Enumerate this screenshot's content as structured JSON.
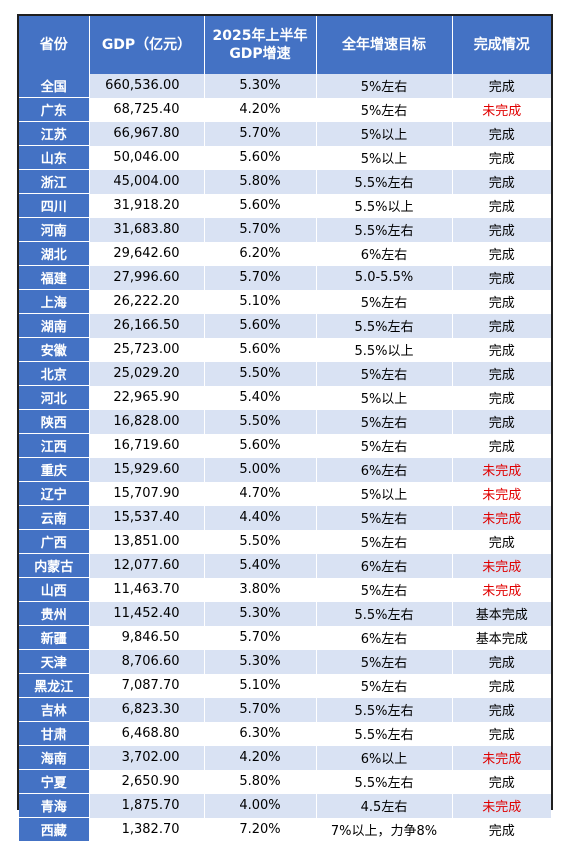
{
  "table": {
    "headers": {
      "province": "省份",
      "gdp": "GDP（亿元）",
      "growth_line1": "2025年上半年",
      "growth_line2": "GDP增速",
      "target": "全年增速目标",
      "status": "完成情况"
    },
    "status_colors": {
      "default": "#000000",
      "incomplete": "#e00000"
    },
    "rows": [
      {
        "province": "全国",
        "gdp": "660,536.00",
        "growth": "5.30%",
        "target": "5%左右",
        "status": "完成"
      },
      {
        "province": "广东",
        "gdp": "68,725.40",
        "growth": "4.20%",
        "target": "5%左右",
        "status": "未完成"
      },
      {
        "province": "江苏",
        "gdp": "66,967.80",
        "growth": "5.70%",
        "target": "5%以上",
        "status": "完成"
      },
      {
        "province": "山东",
        "gdp": "50,046.00",
        "growth": "5.60%",
        "target": "5%以上",
        "status": "完成"
      },
      {
        "province": "浙江",
        "gdp": "45,004.00",
        "growth": "5.80%",
        "target": "5.5%左右",
        "status": "完成"
      },
      {
        "province": "四川",
        "gdp": "31,918.20",
        "growth": "5.60%",
        "target": "5.5%以上",
        "status": "完成"
      },
      {
        "province": "河南",
        "gdp": "31,683.80",
        "growth": "5.70%",
        "target": "5.5%左右",
        "status": "完成"
      },
      {
        "province": "湖北",
        "gdp": "29,642.60",
        "growth": "6.20%",
        "target": "6%左右",
        "status": "完成"
      },
      {
        "province": "福建",
        "gdp": "27,996.60",
        "growth": "5.70%",
        "target": "5.0-5.5%",
        "status": "完成"
      },
      {
        "province": "上海",
        "gdp": "26,222.20",
        "growth": "5.10%",
        "target": "5%左右",
        "status": "完成"
      },
      {
        "province": "湖南",
        "gdp": "26,166.50",
        "growth": "5.60%",
        "target": "5.5%左右",
        "status": "完成"
      },
      {
        "province": "安徽",
        "gdp": "25,723.00",
        "growth": "5.60%",
        "target": "5.5%以上",
        "status": "完成"
      },
      {
        "province": "北京",
        "gdp": "25,029.20",
        "growth": "5.50%",
        "target": "5%左右",
        "status": "完成"
      },
      {
        "province": "河北",
        "gdp": "22,965.90",
        "growth": "5.40%",
        "target": "5%以上",
        "status": "完成"
      },
      {
        "province": "陕西",
        "gdp": "16,828.00",
        "growth": "5.50%",
        "target": "5%左右",
        "status": "完成"
      },
      {
        "province": "江西",
        "gdp": "16,719.60",
        "growth": "5.60%",
        "target": "5%左右",
        "status": "完成"
      },
      {
        "province": "重庆",
        "gdp": "15,929.60",
        "growth": "5.00%",
        "target": "6%左右",
        "status": "未完成"
      },
      {
        "province": "辽宁",
        "gdp": "15,707.90",
        "growth": "4.70%",
        "target": "5%以上",
        "status": "未完成"
      },
      {
        "province": "云南",
        "gdp": "15,537.40",
        "growth": "4.40%",
        "target": "5%左右",
        "status": "未完成"
      },
      {
        "province": "广西",
        "gdp": "13,851.00",
        "growth": "5.50%",
        "target": "5%左右",
        "status": "完成"
      },
      {
        "province": "内蒙古",
        "gdp": "12,077.60",
        "growth": "5.40%",
        "target": "6%左右",
        "status": "未完成"
      },
      {
        "province": "山西",
        "gdp": "11,463.70",
        "growth": "3.80%",
        "target": "5%左右",
        "status": "未完成"
      },
      {
        "province": "贵州",
        "gdp": "11,452.40",
        "growth": "5.30%",
        "target": "5.5%左右",
        "status": "基本完成"
      },
      {
        "province": "新疆",
        "gdp": "9,846.50",
        "growth": "5.70%",
        "target": "6%左右",
        "status": "基本完成"
      },
      {
        "province": "天津",
        "gdp": "8,706.60",
        "growth": "5.30%",
        "target": "5%左右",
        "status": "完成"
      },
      {
        "province": "黑龙江",
        "gdp": "7,087.70",
        "growth": "5.10%",
        "target": "5%左右",
        "status": "完成"
      },
      {
        "province": "吉林",
        "gdp": "6,823.30",
        "growth": "5.70%",
        "target": "5.5%左右",
        "status": "完成"
      },
      {
        "province": "甘肃",
        "gdp": "6,468.80",
        "growth": "6.30%",
        "target": "5.5%左右",
        "status": "完成"
      },
      {
        "province": "海南",
        "gdp": "3,702.00",
        "growth": "4.20%",
        "target": "6%以上",
        "status": "未完成"
      },
      {
        "province": "宁夏",
        "gdp": "2,650.90",
        "growth": "5.80%",
        "target": "5.5%左右",
        "status": "完成"
      },
      {
        "province": "青海",
        "gdp": "1,875.70",
        "growth": "4.00%",
        "target": "4.5左右",
        "status": "未完成"
      },
      {
        "province": "西藏",
        "gdp": "1,382.70",
        "growth": "7.20%",
        "target": "7%以上，力争8%",
        "status": "完成"
      }
    ]
  }
}
